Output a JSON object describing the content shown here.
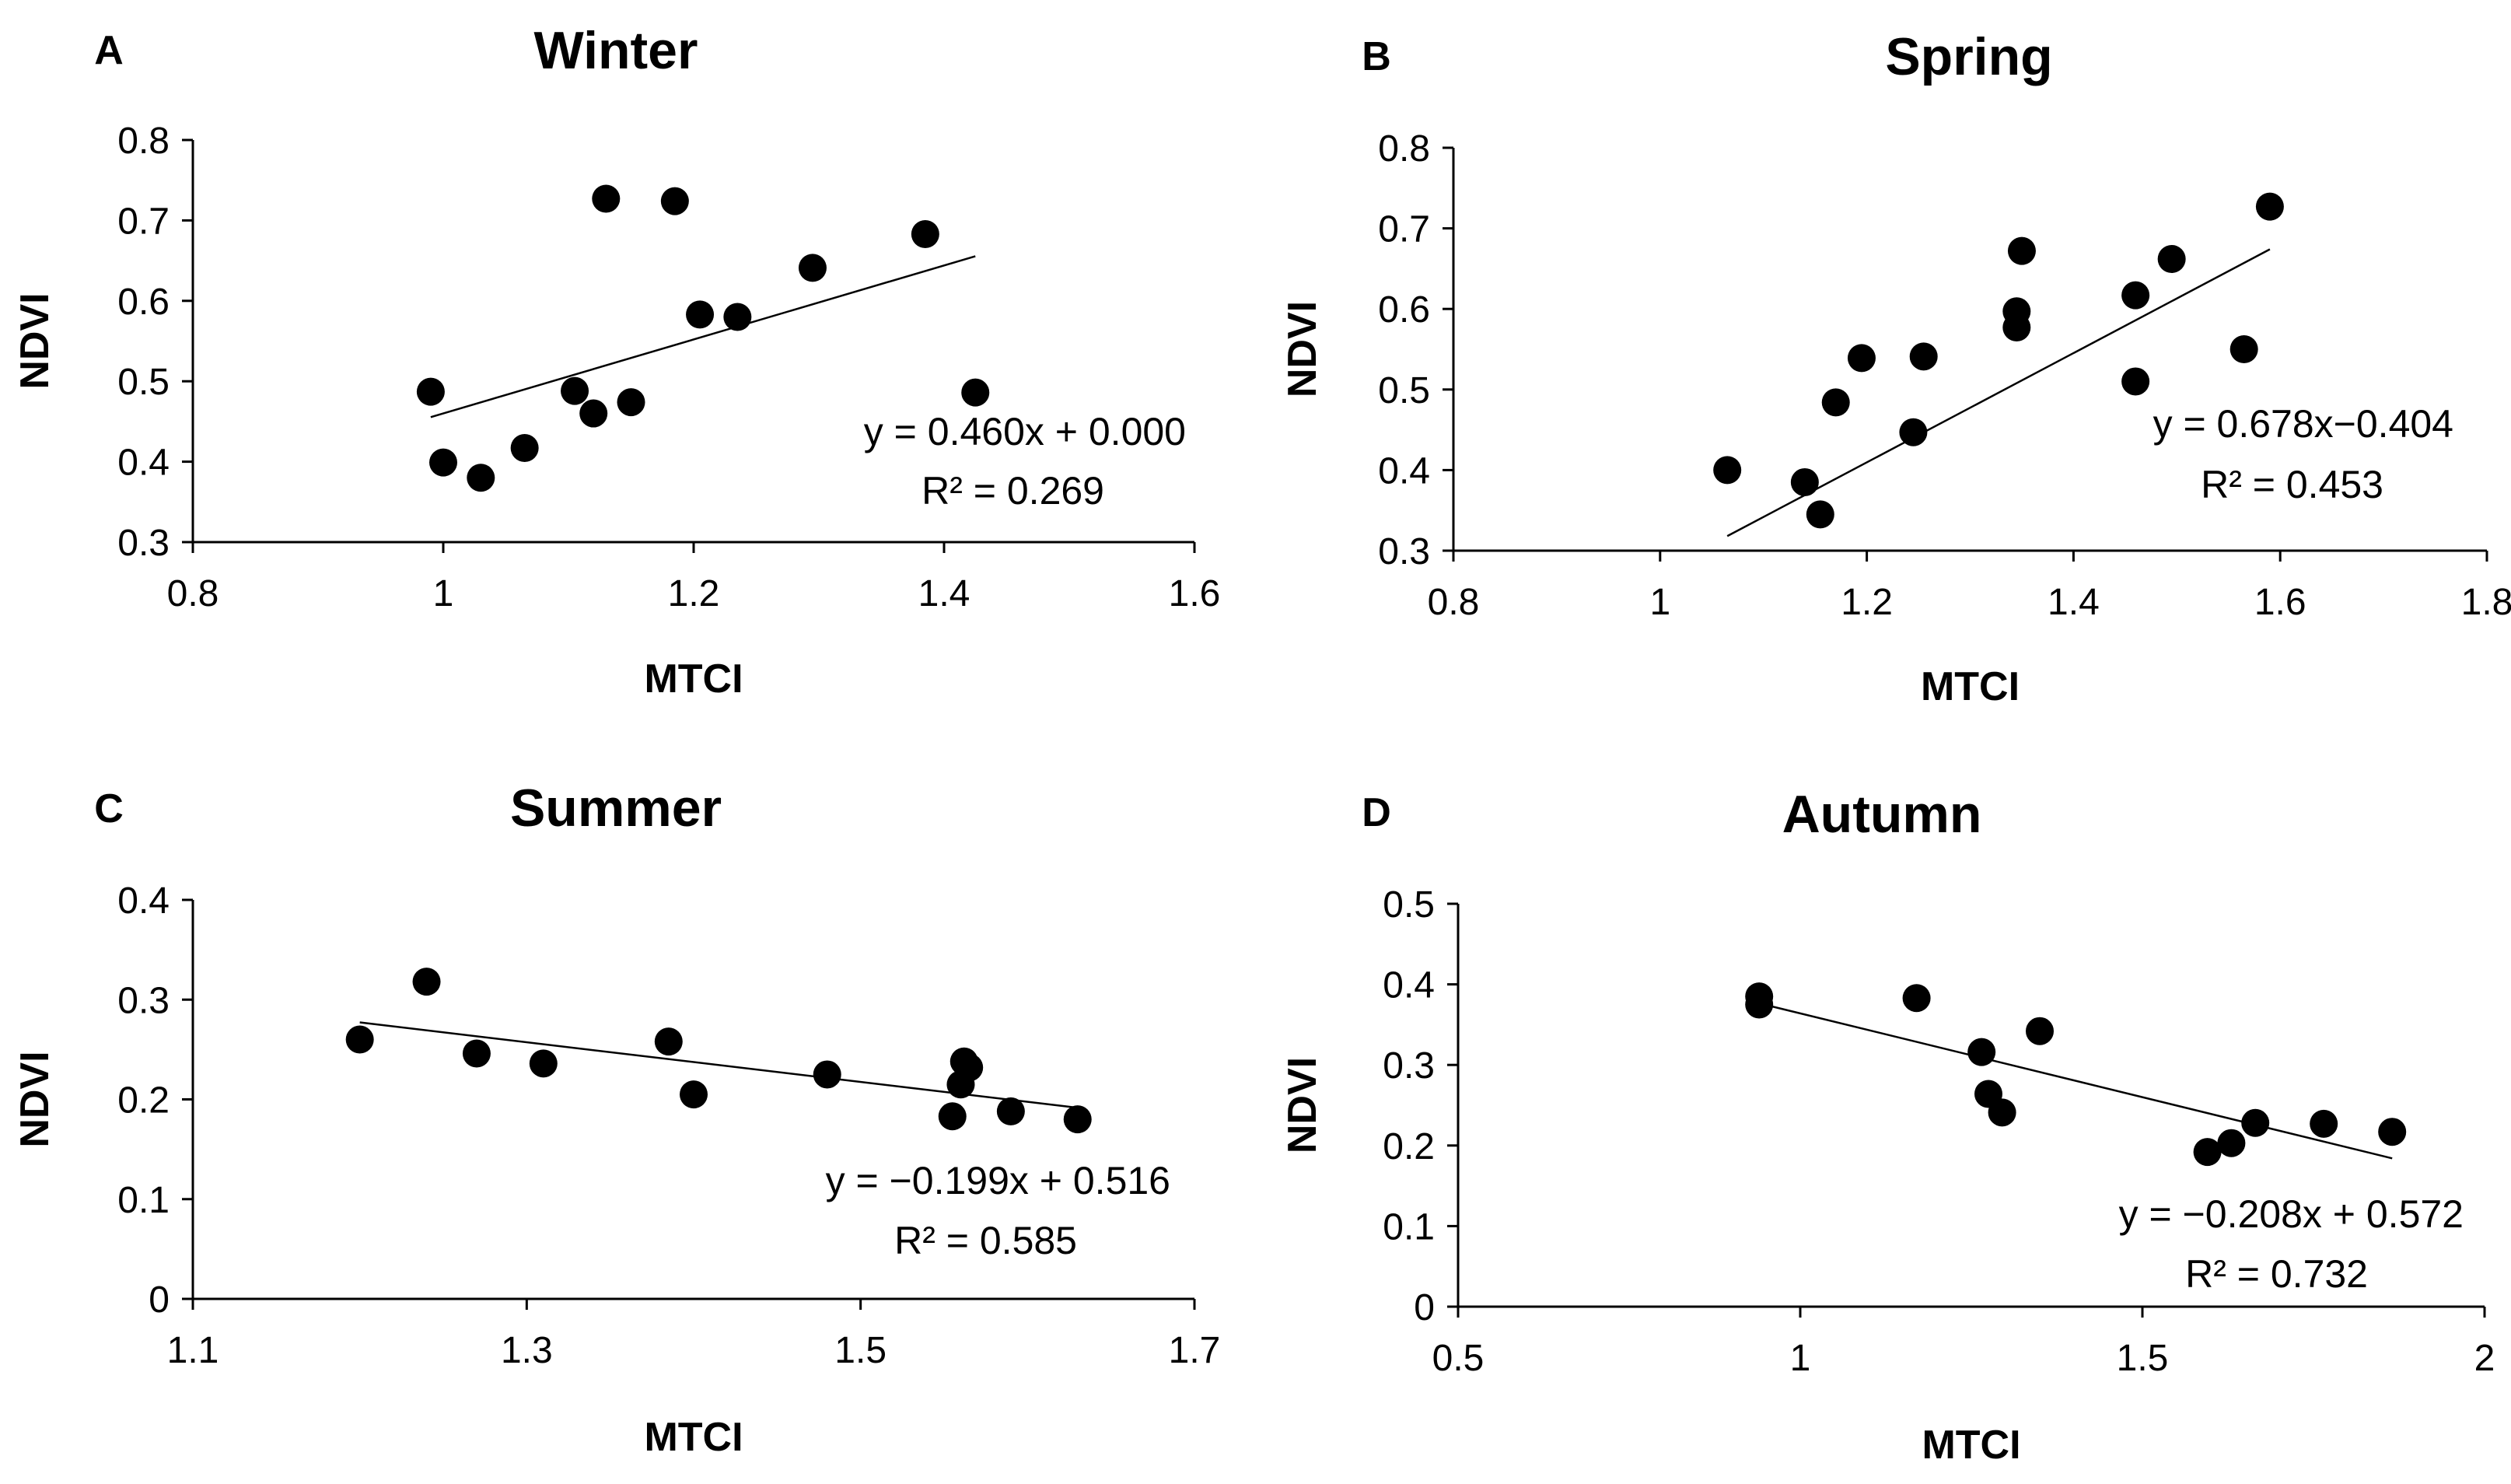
{
  "chart_data": [
    {
      "type": "scatter",
      "panel": "A",
      "title": "Winter",
      "xlabel": "MTCI",
      "ylabel": "NDVI",
      "xlim": [
        0.8,
        1.6
      ],
      "ylim": [
        0.3,
        0.8
      ],
      "xticks": [
        0.8,
        1,
        1.2,
        1.4,
        1.6
      ],
      "xtick_labels": [
        "0.8",
        "1",
        "1.2",
        "1.4",
        "1.6"
      ],
      "yticks": [
        0.3,
        0.4,
        0.5,
        0.6,
        0.7,
        0.8
      ],
      "ytick_labels": [
        "0.3",
        "0.4",
        "0.5",
        "0.6",
        "0.7",
        "0.8"
      ],
      "points": [
        {
          "x": 0.99,
          "y": 0.487
        },
        {
          "x": 1.0,
          "y": 0.399
        },
        {
          "x": 1.03,
          "y": 0.38
        },
        {
          "x": 1.065,
          "y": 0.417
        },
        {
          "x": 1.105,
          "y": 0.488
        },
        {
          "x": 1.12,
          "y": 0.46
        },
        {
          "x": 1.13,
          "y": 0.727
        },
        {
          "x": 1.15,
          "y": 0.474
        },
        {
          "x": 1.185,
          "y": 0.724
        },
        {
          "x": 1.205,
          "y": 0.583
        },
        {
          "x": 1.235,
          "y": 0.58
        },
        {
          "x": 1.295,
          "y": 0.641
        },
        {
          "x": 1.385,
          "y": 0.683
        },
        {
          "x": 1.425,
          "y": 0.486
        }
      ],
      "trendline": {
        "slope": 0.46,
        "intercept": 0.0,
        "x_from": 0.99,
        "x_to": 1.425
      },
      "equation": "y = 0.460x + 0.000",
      "r2": "R² = 0.269"
    },
    {
      "type": "scatter",
      "panel": "B",
      "title": "Spring",
      "xlabel": "MTCI",
      "ylabel": "NDVI",
      "xlim": [
        0.8,
        1.8
      ],
      "ylim": [
        0.3,
        0.8
      ],
      "xticks": [
        0.8,
        1,
        1.2,
        1.4,
        1.6,
        1.8
      ],
      "xtick_labels": [
        "0.8",
        "1",
        "1.2",
        "1.4",
        "1.6",
        "1.8"
      ],
      "yticks": [
        0.3,
        0.4,
        0.5,
        0.6,
        0.7,
        0.8
      ],
      "ytick_labels": [
        "0.3",
        "0.4",
        "0.5",
        "0.6",
        "0.7",
        "0.8"
      ],
      "points": [
        {
          "x": 1.065,
          "y": 0.4
        },
        {
          "x": 1.14,
          "y": 0.385
        },
        {
          "x": 1.155,
          "y": 0.345
        },
        {
          "x": 1.17,
          "y": 0.484
        },
        {
          "x": 1.195,
          "y": 0.539
        },
        {
          "x": 1.245,
          "y": 0.447
        },
        {
          "x": 1.255,
          "y": 0.541
        },
        {
          "x": 1.345,
          "y": 0.577
        },
        {
          "x": 1.345,
          "y": 0.597
        },
        {
          "x": 1.35,
          "y": 0.672
        },
        {
          "x": 1.46,
          "y": 0.51
        },
        {
          "x": 1.46,
          "y": 0.617
        },
        {
          "x": 1.495,
          "y": 0.662
        },
        {
          "x": 1.565,
          "y": 0.55
        },
        {
          "x": 1.59,
          "y": 0.727
        }
      ],
      "trendline": {
        "slope": 0.678,
        "intercept": -0.404,
        "x_from": 1.065,
        "x_to": 1.59
      },
      "equation": "y = 0.678x−0.404",
      "r2": "R² = 0.453"
    },
    {
      "type": "scatter",
      "panel": "C",
      "title": "Summer",
      "xlabel": "MTCI",
      "ylabel": "NDVI",
      "xlim": [
        1.1,
        1.7
      ],
      "ylim": [
        0,
        0.4
      ],
      "xticks": [
        1.1,
        1.3,
        1.5,
        1.7
      ],
      "xtick_labels": [
        "1.1",
        "1.3",
        "1.5",
        "1.7"
      ],
      "yticks": [
        0,
        0.1,
        0.2,
        0.3,
        0.4
      ],
      "ytick_labels": [
        "0",
        "0.1",
        "0.2",
        "0.3",
        "0.4"
      ],
      "points": [
        {
          "x": 1.2,
          "y": 0.26
        },
        {
          "x": 1.24,
          "y": 0.318
        },
        {
          "x": 1.27,
          "y": 0.246
        },
        {
          "x": 1.31,
          "y": 0.236
        },
        {
          "x": 1.385,
          "y": 0.258
        },
        {
          "x": 1.4,
          "y": 0.205
        },
        {
          "x": 1.48,
          "y": 0.225
        },
        {
          "x": 1.555,
          "y": 0.183
        },
        {
          "x": 1.56,
          "y": 0.215
        },
        {
          "x": 1.562,
          "y": 0.238
        },
        {
          "x": 1.565,
          "y": 0.232
        },
        {
          "x": 1.59,
          "y": 0.188
        },
        {
          "x": 1.63,
          "y": 0.18
        }
      ],
      "trendline": {
        "slope": -0.199,
        "intercept": 0.516,
        "x_from": 1.2,
        "x_to": 1.63
      },
      "equation": "y = −0.199x + 0.516",
      "r2": "R² = 0.585"
    },
    {
      "type": "scatter",
      "panel": "D",
      "title": "Autumn",
      "xlabel": "MTCI",
      "ylabel": "NDVI",
      "xlim": [
        0.5,
        2
      ],
      "ylim": [
        0,
        0.5
      ],
      "xticks": [
        0.5,
        1,
        1.5,
        2
      ],
      "xtick_labels": [
        "0.5",
        "1",
        "1.5",
        "2"
      ],
      "yticks": [
        0,
        0.1,
        0.2,
        0.3,
        0.4,
        0.5
      ],
      "ytick_labels": [
        "0",
        "0.1",
        "0.2",
        "0.3",
        "0.4",
        "0.5"
      ],
      "points": [
        {
          "x": 0.94,
          "y": 0.385
        },
        {
          "x": 0.94,
          "y": 0.375
        },
        {
          "x": 1.17,
          "y": 0.383
        },
        {
          "x": 1.265,
          "y": 0.316
        },
        {
          "x": 1.275,
          "y": 0.264
        },
        {
          "x": 1.295,
          "y": 0.241
        },
        {
          "x": 1.35,
          "y": 0.342
        },
        {
          "x": 1.595,
          "y": 0.192
        },
        {
          "x": 1.63,
          "y": 0.203
        },
        {
          "x": 1.665,
          "y": 0.228
        },
        {
          "x": 1.765,
          "y": 0.227
        },
        {
          "x": 1.865,
          "y": 0.217
        }
      ],
      "trendline": {
        "slope": -0.208,
        "intercept": 0.572,
        "x_from": 0.94,
        "x_to": 1.865
      },
      "equation": "y = −0.208x + 0.572",
      "r2": "R² = 0.732"
    }
  ]
}
